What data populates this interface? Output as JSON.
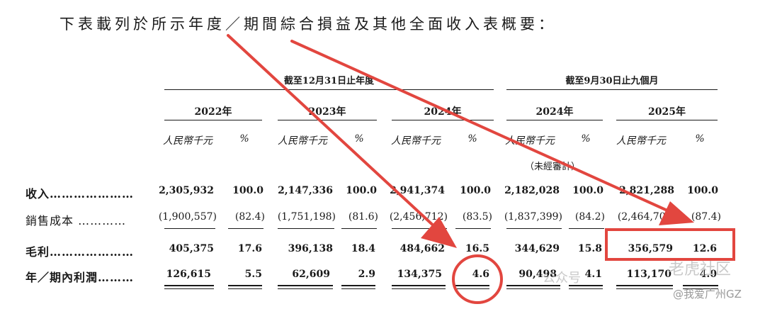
{
  "title": "下表載列於所示年度／期間綜合損益及其他全面收入表概要：",
  "groups": {
    "annual": "截至12月31日止年度",
    "nine_month": "截至9月30日止九個月"
  },
  "columns": [
    {
      "year": "2022年",
      "unit": "人民幣千元",
      "pct": "%"
    },
    {
      "year": "2023年",
      "unit": "人民幣千元",
      "pct": "%"
    },
    {
      "year": "2024年",
      "unit": "人民幣千元",
      "pct": "%"
    },
    {
      "year": "2024年",
      "unit": "人民幣千元",
      "pct": "%",
      "note": "（未經審計）"
    },
    {
      "year": "2025年",
      "unit": "人民幣千元",
      "pct": "%"
    }
  ],
  "rows": [
    {
      "label": "收入",
      "values": [
        "2,305,932",
        "100.0",
        "2,147,336",
        "100.0",
        "2,941,374",
        "100.0",
        "2,182,028",
        "100.0",
        "2,821,288",
        "100.0"
      ]
    },
    {
      "label": "銷售成本",
      "values": [
        "(1,900,557)",
        "(82.4)",
        "(1,751,198)",
        "(81.6)",
        "(2,456,712)",
        "(83.5)",
        "(1,837,399)",
        "(84.2)",
        "(2,464,709)",
        "(87.4)"
      ]
    },
    {
      "label": "毛利",
      "values": [
        "405,375",
        "17.6",
        "396,138",
        "18.4",
        "484,662",
        "16.5",
        "344,629",
        "15.8",
        "356,579",
        "12.6"
      ]
    },
    {
      "label": "年／期內利潤",
      "values": [
        "126,615",
        "5.5",
        "62,609",
        "2.9",
        "134,375",
        "4.6",
        "90,498",
        "4.1",
        "113,170",
        "4.0"
      ]
    }
  ],
  "annotations": {
    "color": "#e2463f",
    "highlighted_cells": [
      "rows.3.values.5",
      "rows.2.values.8",
      "rows.2.values.9"
    ]
  },
  "watermark": {
    "brand_text": "公众号",
    "brand_text_2": "老虎社区",
    "sub_text": "@我爱广州GZ"
  }
}
